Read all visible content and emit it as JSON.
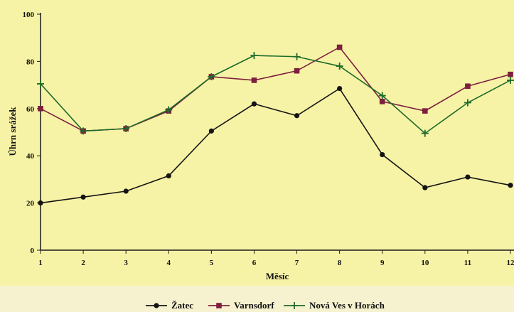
{
  "chart_data": {
    "type": "line",
    "xlabel": "Měsíc",
    "ylabel": "Úhrn srážek",
    "x": [
      1,
      2,
      3,
      4,
      5,
      6,
      7,
      8,
      9,
      10,
      11,
      12
    ],
    "x_tick_labels": [
      "1",
      "2",
      "3",
      "4",
      "5",
      "6",
      "7",
      "8",
      "9",
      "10",
      "11",
      "12"
    ],
    "y_tick_labels": [
      "0",
      "20",
      "40",
      "60",
      "80",
      "100"
    ],
    "ylim": [
      0,
      100
    ],
    "xlim": [
      1,
      12
    ],
    "grid": false,
    "legend_position": "bottom",
    "series": [
      {
        "name": "Žatec",
        "color": "#141414",
        "marker": "circle",
        "values": [
          20,
          22.5,
          25,
          31.5,
          50.5,
          62,
          57,
          68.5,
          40.5,
          26.5,
          31,
          27.5
        ]
      },
      {
        "name": "Varnsdorf",
        "color": "#7d1f3e",
        "marker": "square",
        "values": [
          60,
          50.5,
          51.5,
          59,
          73.5,
          72,
          76,
          86,
          63,
          59,
          69.5,
          74.5
        ]
      },
      {
        "name": "Nová Ves v Horách",
        "color": "#1f6b2a",
        "marker": "plus",
        "values": [
          70.5,
          50.5,
          51.5,
          59.5,
          73.5,
          82.5,
          82,
          78,
          65.5,
          49.5,
          62.5,
          72
        ]
      }
    ]
  }
}
